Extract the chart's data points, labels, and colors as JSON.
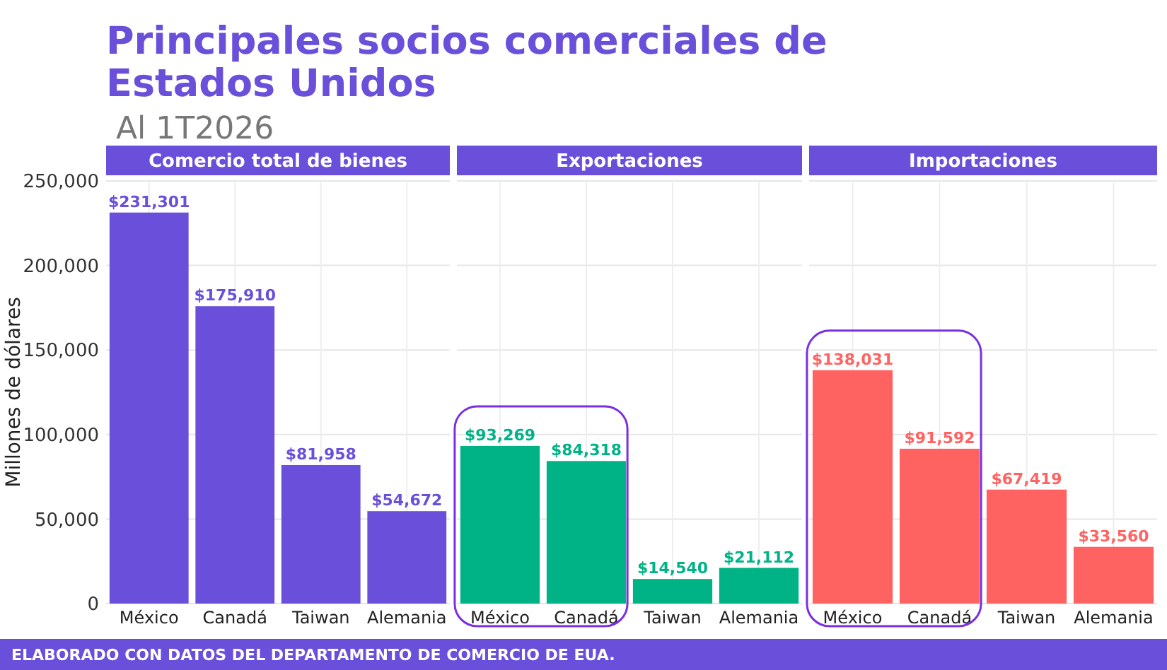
{
  "chart_data": [
    {
      "type": "other",
      "title": "Principales socios comerciales de Estados Unidos",
      "subtitle": "Al 1T2026",
      "annotations": [
        "ELABORADO CON DATOS DEL DEPARTAMENTO DE COMERCIO DE EUA."
      ]
    },
    {
      "type": "bar",
      "title": "Comercio total de bienes",
      "ylabel": "Millones de dólares",
      "categories": [
        "México",
        "Canadá",
        "Taiwan",
        "Alemania"
      ],
      "values": [
        231301,
        175910,
        81958,
        54672
      ],
      "color": "#6a4fdb",
      "value_labels": [
        "$231,301",
        "$175,910",
        "$81,958",
        "$54,672"
      ],
      "ylim": [
        0,
        250000
      ],
      "yticks": [
        {
          "value": 0,
          "label": "0"
        },
        {
          "value": 50000,
          "label": "50,000"
        },
        {
          "value": 100000,
          "label": "100,000"
        },
        {
          "value": 150000,
          "label": "150,000"
        },
        {
          "value": 200000,
          "label": "200,000"
        },
        {
          "value": 250000,
          "label": "250,000"
        }
      ],
      "grid": true
    },
    {
      "type": "bar",
      "title": "Exportaciones",
      "categories": [
        "México",
        "Canadá",
        "Taiwan",
        "Alemania"
      ],
      "values": [
        93269,
        84318,
        14540,
        21112
      ],
      "color": "#00b386",
      "value_labels": [
        "$93,269",
        "$84,318",
        "$14,540",
        "$21,112"
      ],
      "ylim": [
        0,
        250000
      ],
      "yticks": [
        0,
        50000,
        100000,
        150000,
        200000,
        250000
      ],
      "grid": true,
      "tick_labels": "x"
    },
    {
      "type": "bar",
      "title": "Importaciones",
      "categories": [
        "México",
        "Canadá",
        "Taiwan",
        "Alemania"
      ],
      "values": [
        138031,
        91592,
        67419,
        33560
      ],
      "color": "#ff6361",
      "value_labels": [
        "$138,031",
        "$91,592",
        "$67,419",
        "$33,560"
      ],
      "ylim": [
        0,
        250000
      ],
      "yticks": [
        0,
        50000,
        100000,
        150000,
        200000,
        250000
      ],
      "grid": true,
      "tick_labels": "x"
    }
  ]
}
